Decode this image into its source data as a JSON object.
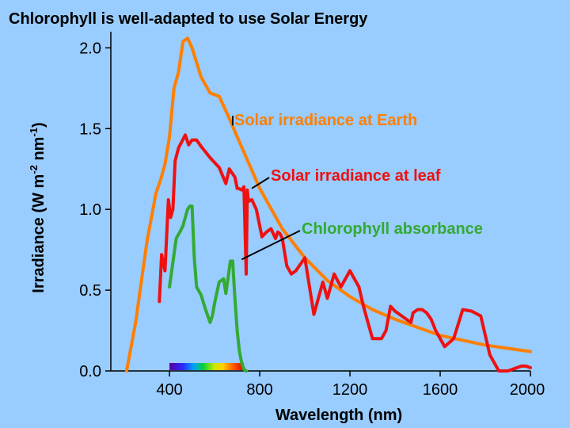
{
  "chart_data": {
    "type": "line",
    "title": "Chlorophyll is well-adapted to use Solar Energy",
    "xlabel": "Wavelength (nm)",
    "ylabel": "Irradiance (W m-2 nm-1)",
    "ylabel_parts": {
      "main": "Irradiance (W m",
      "exp1": "-2",
      "mid": " nm",
      "exp2": "-1",
      "end": ")"
    },
    "xlim": [
      140,
      2000
    ],
    "ylim": [
      0,
      2.1
    ],
    "xticks": [
      400,
      800,
      1200,
      1600,
      2000
    ],
    "xtick_labels": [
      "400",
      "800",
      "1200",
      "1600",
      "2000"
    ],
    "yticks": [
      0,
      0.5,
      1.0,
      1.5,
      2.0
    ],
    "ytick_labels": [
      "0.0",
      "0.5",
      "1.0",
      "1.5",
      "2.0"
    ],
    "grid": false,
    "series": [
      {
        "name": "Solar irradiance at Earth",
        "color": "#ff7f00",
        "x": [
          210,
          250,
          300,
          340,
          360,
          380,
          400,
          420,
          440,
          460,
          480,
          500,
          540,
          580,
          620,
          660,
          700,
          800,
          900,
          1000,
          1100,
          1200,
          1300,
          1400,
          1500,
          1600,
          1700,
          1800,
          1900,
          2000
        ],
        "y": [
          0.0,
          0.3,
          0.8,
          1.1,
          1.18,
          1.28,
          1.45,
          1.75,
          1.85,
          2.04,
          2.06,
          2.0,
          1.82,
          1.72,
          1.7,
          1.58,
          1.45,
          1.13,
          0.88,
          0.7,
          0.56,
          0.46,
          0.38,
          0.32,
          0.27,
          0.22,
          0.19,
          0.16,
          0.14,
          0.12
        ]
      },
      {
        "name": "Solar irradiance at leaf",
        "color": "#ee1111",
        "x": [
          355,
          365,
          380,
          395,
          405,
          415,
          425,
          440,
          470,
          485,
          500,
          520,
          540,
          580,
          620,
          650,
          665,
          690,
          700,
          705,
          720,
          730,
          740,
          745,
          750,
          765,
          785,
          810,
          830,
          850,
          870,
          880,
          890,
          900,
          920,
          940,
          960,
          1000,
          1040,
          1080,
          1100,
          1130,
          1160,
          1200,
          1240,
          1260,
          1280,
          1300,
          1340,
          1360,
          1380,
          1400,
          1440,
          1470,
          1480,
          1500,
          1520,
          1540,
          1560,
          1580,
          1620,
          1660,
          1700,
          1740,
          1780,
          1820,
          1860,
          1900,
          1960,
          1980,
          2000
        ],
        "y": [
          0.43,
          0.72,
          0.62,
          1.06,
          0.95,
          1.0,
          1.3,
          1.38,
          1.46,
          1.4,
          1.43,
          1.43,
          1.39,
          1.32,
          1.26,
          1.16,
          1.25,
          1.2,
          1.13,
          1.13,
          1.12,
          1.14,
          0.6,
          1.12,
          1.05,
          1.06,
          1.0,
          0.83,
          0.86,
          0.88,
          0.82,
          0.86,
          0.85,
          0.82,
          0.65,
          0.6,
          0.62,
          0.7,
          0.35,
          0.55,
          0.45,
          0.6,
          0.52,
          0.62,
          0.52,
          0.4,
          0.3,
          0.2,
          0.2,
          0.25,
          0.4,
          0.37,
          0.33,
          0.3,
          0.36,
          0.38,
          0.38,
          0.36,
          0.32,
          0.25,
          0.15,
          0.2,
          0.38,
          0.37,
          0.34,
          0.1,
          0.0,
          0.0,
          0.03,
          0.03,
          0.02
        ]
      },
      {
        "name": "Chlorophyll absorbance",
        "color": "#33aa33",
        "x": [
          400,
          410,
          430,
          450,
          460,
          470,
          480,
          490,
          500,
          510,
          520,
          540,
          560,
          580,
          590,
          600,
          620,
          640,
          650,
          660,
          670,
          680,
          690,
          700,
          710,
          720,
          730,
          740
        ],
        "y": [
          0.52,
          0.62,
          0.82,
          0.87,
          0.9,
          0.95,
          1.0,
          1.02,
          1.02,
          0.7,
          0.52,
          0.47,
          0.38,
          0.3,
          0.34,
          0.42,
          0.55,
          0.57,
          0.48,
          0.58,
          0.68,
          0.68,
          0.45,
          0.25,
          0.12,
          0.05,
          0.01,
          0.0
        ]
      }
    ],
    "annotations": [
      {
        "text": "Solar irradiance at Earth",
        "color": "#ff7f00",
        "line_to_x": 680,
        "line_to_y": 1.52
      },
      {
        "text": "Solar irradiance at leaf",
        "color": "#ee1111",
        "line_to_x": 765,
        "line_to_y": 1.13
      },
      {
        "text": "Chlorophyll absorbance",
        "color": "#33aa33",
        "line_to_x": 720,
        "line_to_y": 0.69
      }
    ],
    "spectrum_bar": {
      "x_range": [
        400,
        730
      ]
    }
  }
}
